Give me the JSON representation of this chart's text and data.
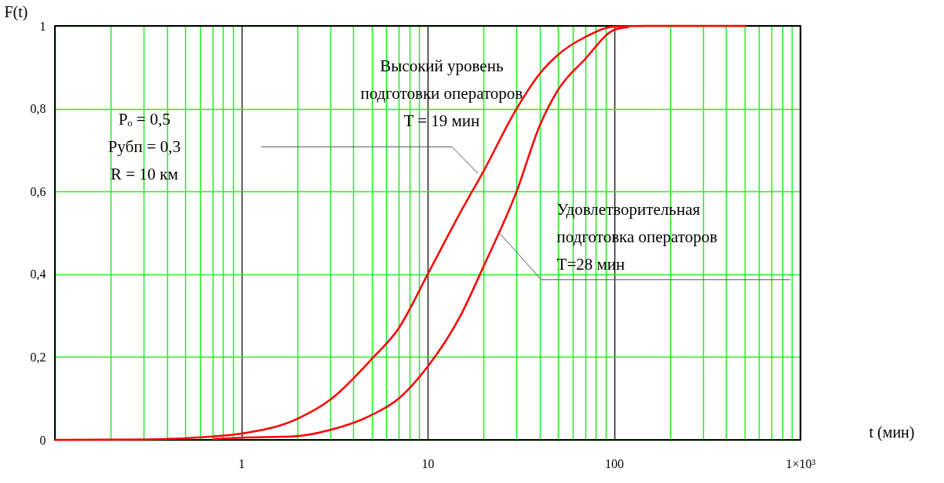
{
  "chart_data": {
    "type": "line",
    "xlabel": "t (мин)",
    "ylabel": "F(t)",
    "log": "x",
    "xlim": [
      0.1,
      1000
    ],
    "xticks": [
      {
        "value": 0.1,
        "label": null
      },
      {
        "value": 0.2,
        "label": null
      },
      {
        "value": 0.3,
        "label": null
      },
      {
        "value": 0.4,
        "label": null
      },
      {
        "value": 0.5,
        "label": null
      },
      {
        "value": 0.6,
        "label": null
      },
      {
        "value": 0.7,
        "label": null
      },
      {
        "value": 0.8,
        "label": null
      },
      {
        "value": 0.9,
        "label": null
      },
      1,
      {
        "value": 2,
        "label": null
      },
      {
        "value": 3,
        "label": null
      },
      {
        "value": 4,
        "label": null
      },
      {
        "value": 5,
        "label": null
      },
      {
        "value": 6,
        "label": null
      },
      {
        "value": 7,
        "label": null
      },
      {
        "value": 8,
        "label": null
      },
      {
        "value": 9,
        "label": null
      },
      10,
      {
        "value": 20,
        "label": null
      },
      {
        "value": 30,
        "label": null
      },
      {
        "value": 40,
        "label": null
      },
      {
        "value": 50,
        "label": null
      },
      {
        "value": 60,
        "label": null
      },
      {
        "value": 70,
        "label": null
      },
      {
        "value": 80,
        "label": null
      },
      {
        "value": 90,
        "label": null
      },
      100,
      {
        "value": 200,
        "label": null
      },
      {
        "value": 300,
        "label": null
      },
      {
        "value": 400,
        "label": null
      },
      {
        "value": 500,
        "label": null
      },
      {
        "value": 600,
        "label": null
      },
      {
        "value": 700,
        "label": null
      },
      {
        "value": 800,
        "label": null
      },
      {
        "value": 900,
        "label": null
      },
      {
        "value": 1000,
        "label": "1×10³"
      }
    ],
    "ylim": [
      0,
      1
    ],
    "yticks": [
      {
        "value": 0,
        "label": "0"
      },
      {
        "value": 0.2,
        "label": "0,2"
      },
      {
        "value": 0.4,
        "label": "0,4"
      },
      {
        "value": 0.6,
        "label": "0,6"
      },
      {
        "value": 0.8,
        "label": "0,8"
      },
      {
        "value": 1,
        "label": "1"
      }
    ],
    "grid": true,
    "legend": false,
    "marker": "none",
    "line_style": "solid",
    "series": [
      {
        "color": "#ff0000",
        "x": [
          0.1,
          0.3,
          0.5,
          0.7,
          1,
          2,
          3,
          5,
          7,
          10,
          15,
          20,
          30,
          40,
          50,
          70,
          100,
          150,
          510
        ],
        "values": [
          0,
          0.001,
          0.004,
          0.008,
          0.015,
          0.051,
          0.097,
          0.195,
          0.27,
          0.4,
          0.55,
          0.65,
          0.8,
          0.885,
          0.93,
          0.973,
          0.998,
          1,
          1
        ]
      },
      {
        "color": "#ff0000",
        "x": [
          0.7,
          1,
          2,
          3,
          5,
          7,
          10,
          15,
          20,
          30,
          40,
          50,
          70,
          100,
          120
        ],
        "values": [
          0.002,
          0.005,
          0.009,
          0.024,
          0.06,
          0.1,
          0.177,
          0.3,
          0.42,
          0.6,
          0.76,
          0.845,
          0.92,
          0.99,
          0.997
        ]
      }
    ],
    "annotations": [
      {
        "text": "Высокий уровень\nподготовки операторов\nT = 19 мин",
        "x": 18.6,
        "y": 0.644
      },
      {
        "text": "Удовлетворительная\nподготовка операторов\nT=28 мин",
        "x": 23.7,
        "y": 0.505
      },
      "Pₒ = 0,5\nPубп = 0,3\nR = 10 км"
    ]
  }
}
